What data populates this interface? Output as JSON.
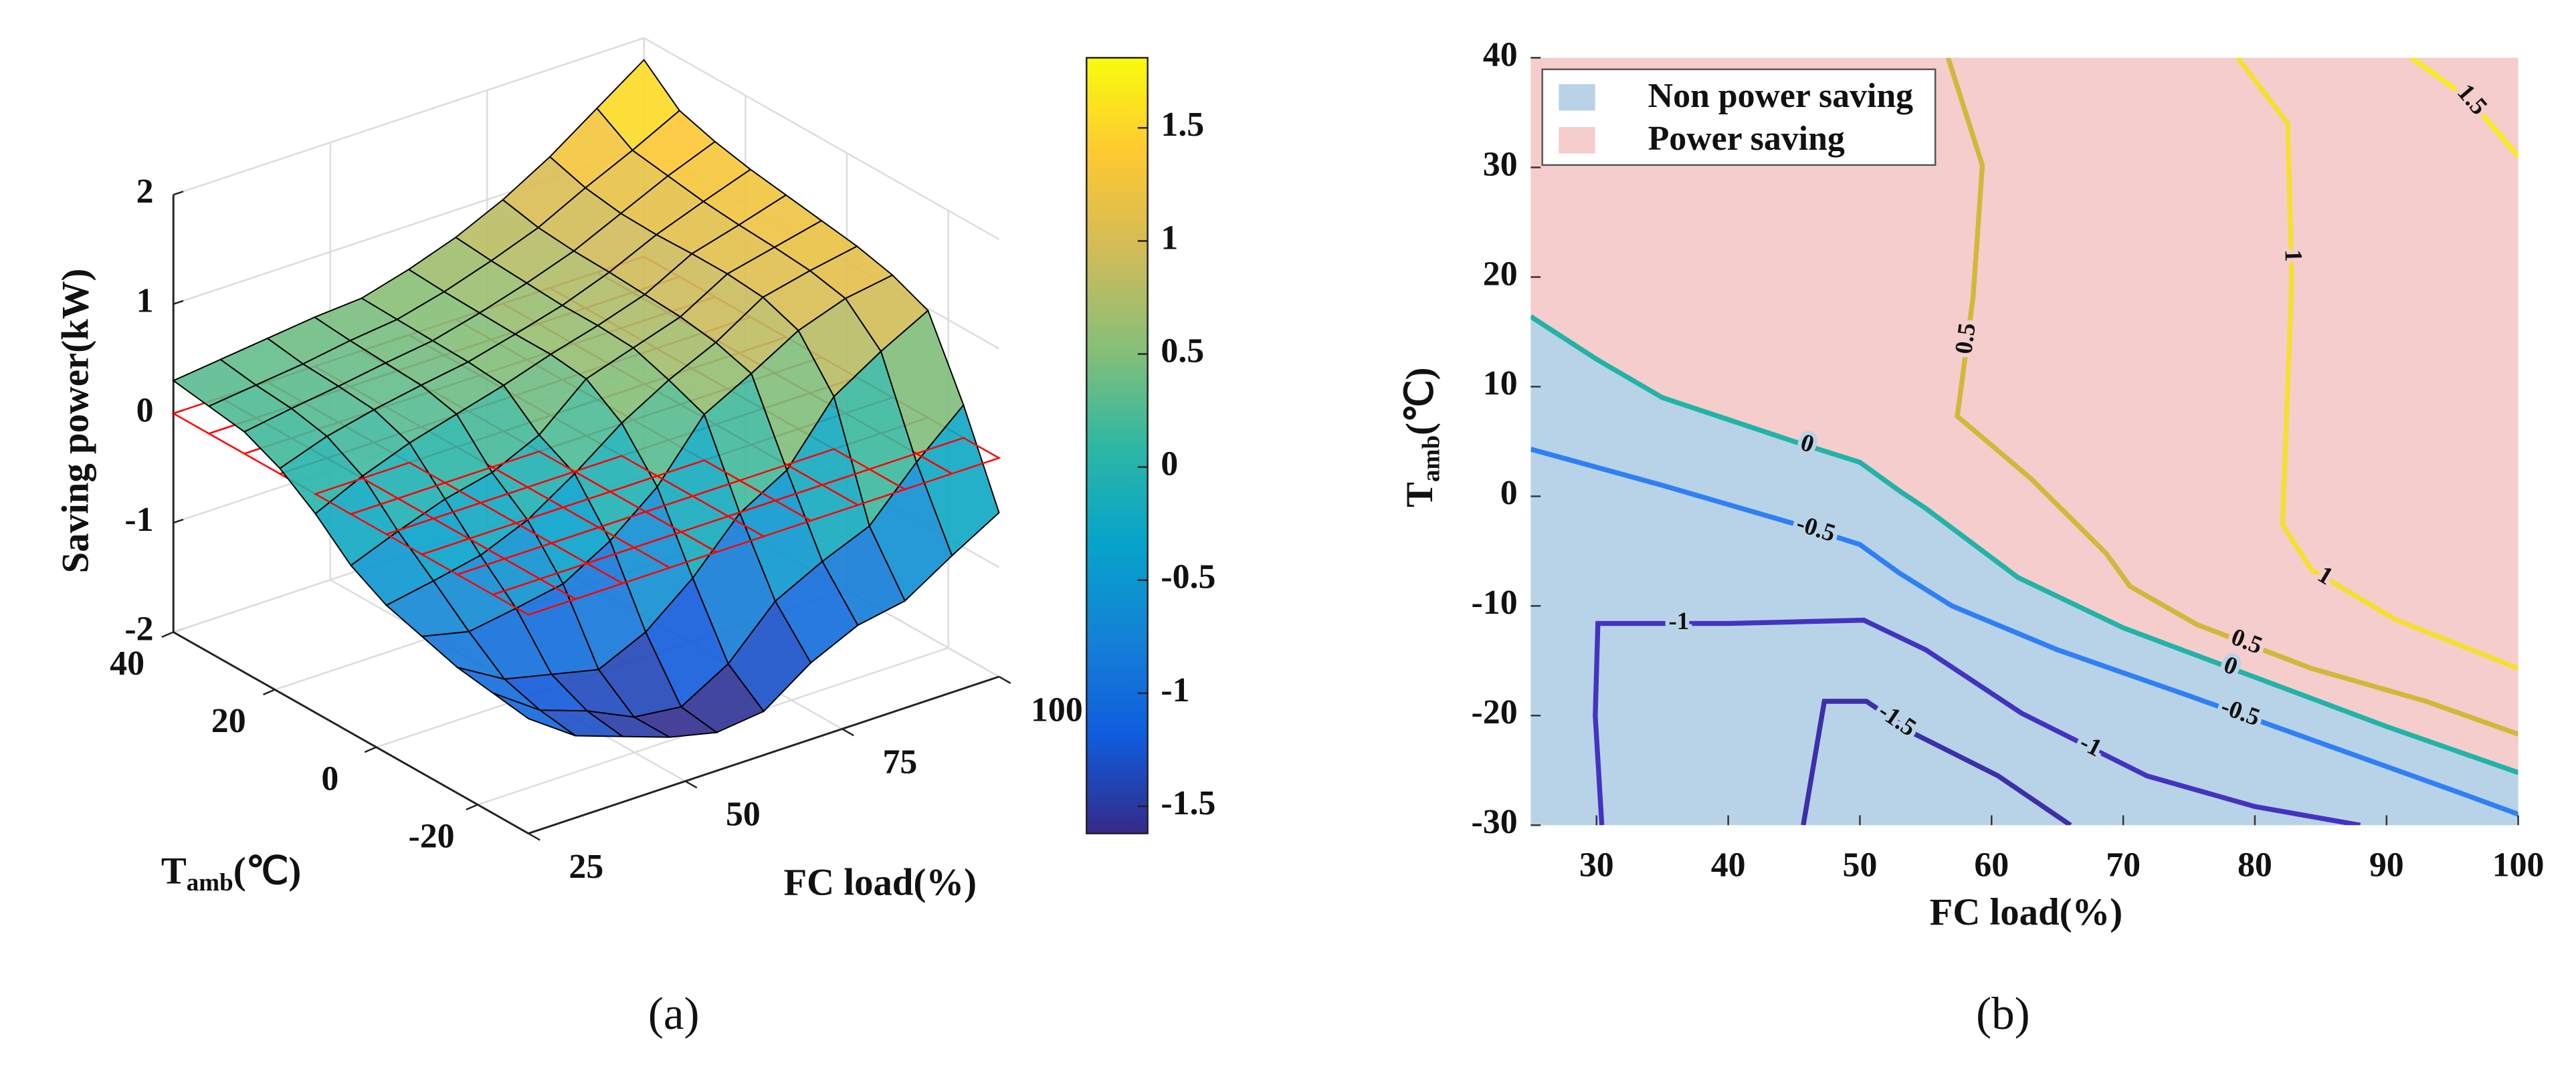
{
  "chart_data": [
    {
      "type": "surface",
      "zlabel": "Saving power(kW)",
      "xlabel": "FC load(%)",
      "ylabel": [
        "T",
        "amb",
        "(℃)"
      ],
      "caption": "(a)",
      "x": [
        25,
        32.5,
        40,
        47.5,
        55,
        62.5,
        70,
        77.5,
        85,
        92.5,
        100
      ],
      "y": [
        -30,
        -23,
        -16,
        -9,
        -2,
        5,
        12,
        19,
        26,
        33,
        40
      ],
      "z": [
        [
          -0.95,
          -1.25,
          -1.4,
          -1.55,
          -1.65,
          -1.6,
          -1.3,
          -1.1,
          -1.02,
          -0.75,
          -0.5
        ],
        [
          -0.9,
          -1.2,
          -1.35,
          -1.55,
          -1.6,
          -1.35,
          -0.92,
          -0.7,
          -0.52,
          -0.08,
          0.3
        ],
        [
          -0.85,
          -1.1,
          -1.2,
          -1.3,
          -1.1,
          -0.75,
          -0.3,
          -0.05,
          0.48,
          0.75,
          0.98
        ],
        [
          -0.75,
          -0.85,
          -0.78,
          -0.7,
          -0.45,
          -0.1,
          0.42,
          0.65,
          0.9,
          1.05,
          1.12
        ],
        [
          -0.65,
          -0.57,
          -0.48,
          -0.3,
          -0.02,
          0.3,
          0.55,
          0.75,
          1.02,
          1.12,
          1.2
        ],
        [
          -0.47,
          -0.3,
          -0.15,
          -0.05,
          0.15,
          0.52,
          0.66,
          0.8,
          1.05,
          1.15,
          1.25
        ],
        [
          -0.18,
          0.02,
          0.18,
          0.3,
          0.42,
          0.56,
          0.68,
          0.82,
          1.05,
          1.17,
          1.3
        ],
        [
          0.05,
          0.2,
          0.3,
          0.38,
          0.45,
          0.56,
          0.68,
          0.84,
          1.04,
          1.2,
          1.35
        ],
        [
          0.2,
          0.27,
          0.33,
          0.4,
          0.46,
          0.57,
          0.7,
          0.85,
          1.05,
          1.25,
          1.42
        ],
        [
          0.25,
          0.3,
          0.35,
          0.42,
          0.47,
          0.58,
          0.72,
          0.88,
          1.1,
          1.3,
          1.52
        ],
        [
          0.3,
          0.35,
          0.4,
          0.45,
          0.48,
          0.6,
          0.75,
          0.95,
          1.2,
          1.5,
          1.8
        ]
      ],
      "xlim": [
        25,
        100
      ],
      "ylim": [
        -30,
        40
      ],
      "zlim": [
        -2,
        2
      ],
      "xticks": [
        25,
        50,
        75,
        100
      ],
      "yticks": [
        -20,
        0,
        20,
        40
      ],
      "zticks": [
        -2,
        -1,
        0,
        1,
        2
      ],
      "clim": [
        -1.62,
        1.81
      ],
      "cticks": [
        -1.5,
        -1,
        -0.5,
        0,
        0.5,
        1,
        1.5
      ],
      "colormap": [
        "#352a87",
        "#0f5cdd",
        "#1481d6",
        "#06a4ca",
        "#2eb7a4",
        "#87bf77",
        "#d1bb59",
        "#fec832",
        "#f9fb0e"
      ],
      "reference_plane": {
        "z": 0,
        "color": "#ff0000"
      },
      "grid": true
    },
    {
      "type": "contour",
      "xlabel": "FC load(%)",
      "ylabel": [
        "T",
        "amb",
        "(℃)"
      ],
      "caption": "(b)",
      "xlim": [
        25,
        100
      ],
      "ylim": [
        -30,
        40
      ],
      "xticks": [
        30,
        40,
        50,
        60,
        70,
        80,
        90,
        100
      ],
      "yticks": [
        -30,
        -20,
        -10,
        0,
        10,
        20,
        30,
        40
      ],
      "regions": [
        {
          "name": "Non power saving",
          "color": "#b8d3e7"
        },
        {
          "name": "Power saving",
          "color": "#f5cdcd"
        }
      ],
      "legend": "upper left",
      "series": [
        {
          "level": -1.5,
          "color": "#3d2fa8",
          "x": [
            45.7,
            47.3,
            50.5,
            54.2,
            60.5,
            66
          ],
          "y": [
            -30,
            -18.7,
            -18.7,
            -21.7,
            -25.5,
            -30
          ]
        },
        {
          "level": -1,
          "color": "#4433c0",
          "x": [
            30.4,
            29.9,
            30.1,
            40,
            50.3,
            55,
            62.3,
            71.8,
            80,
            88
          ],
          "y": [
            -30,
            -20,
            -11.6,
            -11.6,
            -11.3,
            -14,
            -19.8,
            -25.5,
            -28.3,
            -30
          ]
        },
        {
          "level": -0.5,
          "color": "#2f7ff5",
          "x": [
            25,
            35,
            45,
            50,
            53,
            57,
            65,
            75,
            85,
            95,
            100
          ],
          "y": [
            4.3,
            1,
            -2.5,
            -4.4,
            -7,
            -10,
            -14,
            -18.2,
            -22.5,
            -26.8,
            -29
          ]
        },
        {
          "level": 0,
          "color": "#22b3a6",
          "x": [
            25,
            30,
            35,
            40,
            45,
            50,
            53,
            55,
            62,
            70,
            80,
            90,
            100
          ],
          "y": [
            16.4,
            12.5,
            9,
            7,
            5,
            3.1,
            0.5,
            -1.1,
            -7.4,
            -12,
            -16.5,
            -21,
            -25.2
          ]
        },
        {
          "level": 0.5,
          "color": "#d2b83a",
          "x": [
            56.7,
            59.3,
            58.6,
            57.4,
            63,
            68.7,
            70.5,
            75.6,
            84.3,
            93,
            100
          ],
          "y": [
            40,
            30.2,
            18.2,
            7.3,
            1.6,
            -5.2,
            -8.2,
            -11.7,
            -15.7,
            -18.7,
            -21.7
          ]
        },
        {
          "level": 1,
          "color": "#f5df30",
          "x": [
            78.7,
            82.5,
            82.8,
            82.1,
            84.3,
            90.6,
            100
          ],
          "y": [
            40,
            34,
            19.7,
            -2.6,
            -6.7,
            -11.2,
            -15.7
          ]
        },
        {
          "level": 1.5,
          "color": "#f8ec20",
          "x": [
            91.9,
            96.3,
            100
          ],
          "y": [
            40,
            36.2,
            31
          ]
        }
      ]
    }
  ]
}
